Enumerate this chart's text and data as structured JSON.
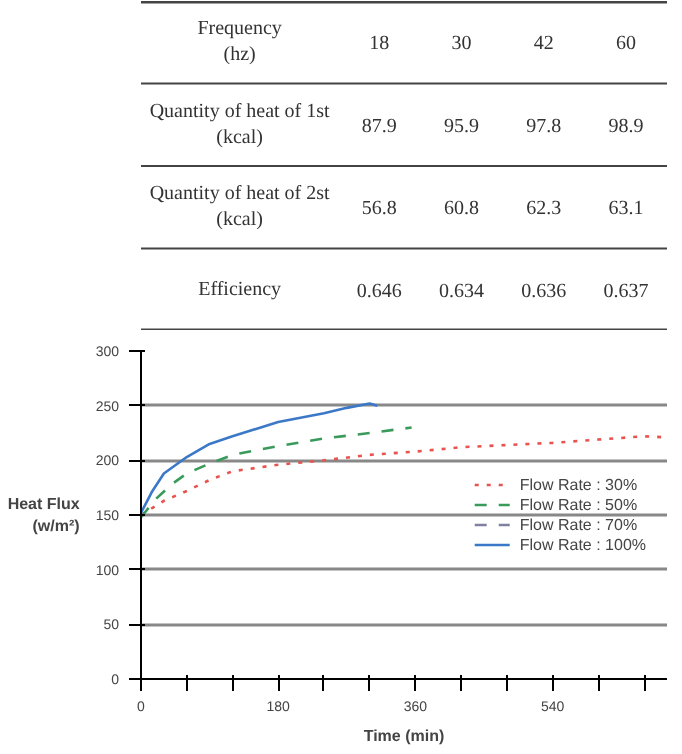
{
  "chart_data": [
    {
      "type": "heatmap",
      "xlabel": "Frequency (hz)",
      "categories": [
        "18",
        "30",
        "42",
        "60"
      ],
      "y_categories": [
        "Quantity of heat of 1st (kcal)",
        "Quantity of heat of 2st (kcal)",
        "Efficiency"
      ],
      "cells": [
        [
          87.9,
          95.9,
          97.8,
          98.9
        ],
        [
          56.8,
          60.8,
          62.3,
          63.1
        ],
        [
          0.646,
          0.634,
          0.636,
          0.637
        ]
      ],
      "data_labels": true
    },
    {
      "type": "line",
      "xlabel": "Time (min)",
      "ylabel": "Heat Flux (w/m²)",
      "xlim": [
        0,
        690
      ],
      "ylim": [
        0,
        300
      ],
      "xticks": [
        0,
        {
          "value": 60,
          "label": null
        },
        {
          "value": 120,
          "label": null
        },
        180,
        {
          "value": 240,
          "label": null
        },
        {
          "value": 300,
          "label": null
        },
        360,
        {
          "value": 420,
          "label": null
        },
        {
          "value": 480,
          "label": null
        },
        540,
        {
          "value": 600,
          "label": null
        },
        {
          "value": 660,
          "label": null
        }
      ],
      "yticks": [
        0,
        50,
        100,
        150,
        200,
        250,
        300
      ],
      "grid": "y",
      "legend": "right",
      "marker": "none",
      "series": [
        {
          "name": "Flow Rate : 30%",
          "color": "#e8534f",
          "line_style": "dotted",
          "x": [
            0,
            30,
            60,
            90,
            120,
            180,
            240,
            300,
            360,
            420,
            480,
            540,
            600,
            660,
            690
          ],
          "values": [
            150,
            163,
            172,
            182,
            190,
            196,
            200,
            205,
            208,
            212,
            214,
            216,
            219,
            222,
            221
          ]
        },
        {
          "name": "Flow Rate : 50%",
          "color": "#3a9a5a",
          "line_style": "dashed",
          "x": [
            0,
            20,
            40,
            60,
            90,
            120,
            180,
            240,
            300,
            355
          ],
          "values": [
            148,
            165,
            178,
            188,
            197,
            205,
            213,
            220,
            225,
            230
          ]
        },
        {
          "name": "Flow Rate : 70%",
          "color": "#8080a0",
          "line_style": "dashed"
        },
        {
          "name": "Flow Rate : 100%",
          "color": "#3c78c8",
          "line_style": "solid",
          "x": [
            0,
            15,
            30,
            60,
            90,
            120,
            180,
            240,
            270,
            300,
            310
          ],
          "values": [
            152,
            172,
            188,
            203,
            215,
            222,
            235,
            243,
            248,
            252,
            250
          ]
        }
      ]
    }
  ]
}
